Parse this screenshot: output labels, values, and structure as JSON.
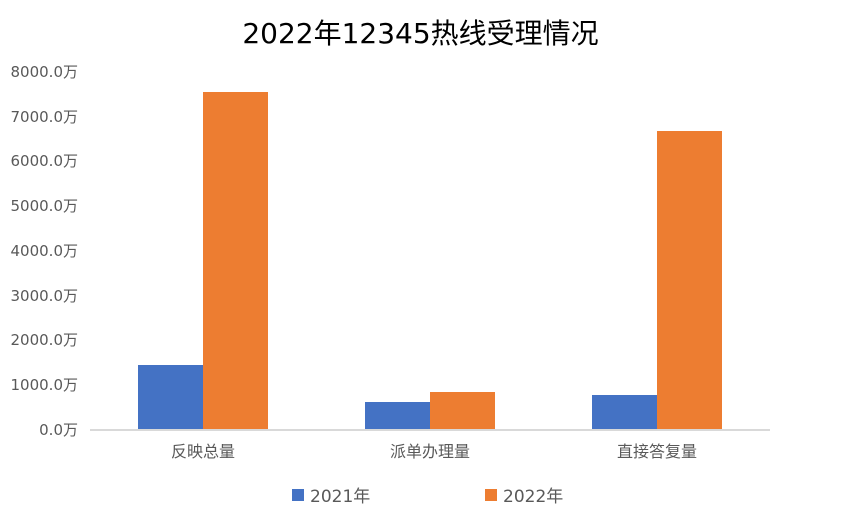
{
  "chart_data": {
    "type": "bar",
    "title": "2022年12345热线受理情况",
    "categories": [
      "反映总量",
      "派单办理量",
      "直接答复量"
    ],
    "series": [
      {
        "name": "2021年",
        "color": "#4472c4",
        "values": [
          1450,
          625,
          780
        ]
      },
      {
        "name": "2022年",
        "color": "#ed7d31",
        "values": [
          7550,
          850,
          6680
        ]
      }
    ],
    "xlabel": "",
    "ylabel": "",
    "unit": "万",
    "ylim": [
      0,
      8000
    ],
    "yticks": [
      "0.0万",
      "1000.0万",
      "2000.0万",
      "3000.0万",
      "4000.0万",
      "5000.0万",
      "6000.0万",
      "7000.0万",
      "8000.0万"
    ],
    "grid": false,
    "legend_position": "bottom"
  }
}
